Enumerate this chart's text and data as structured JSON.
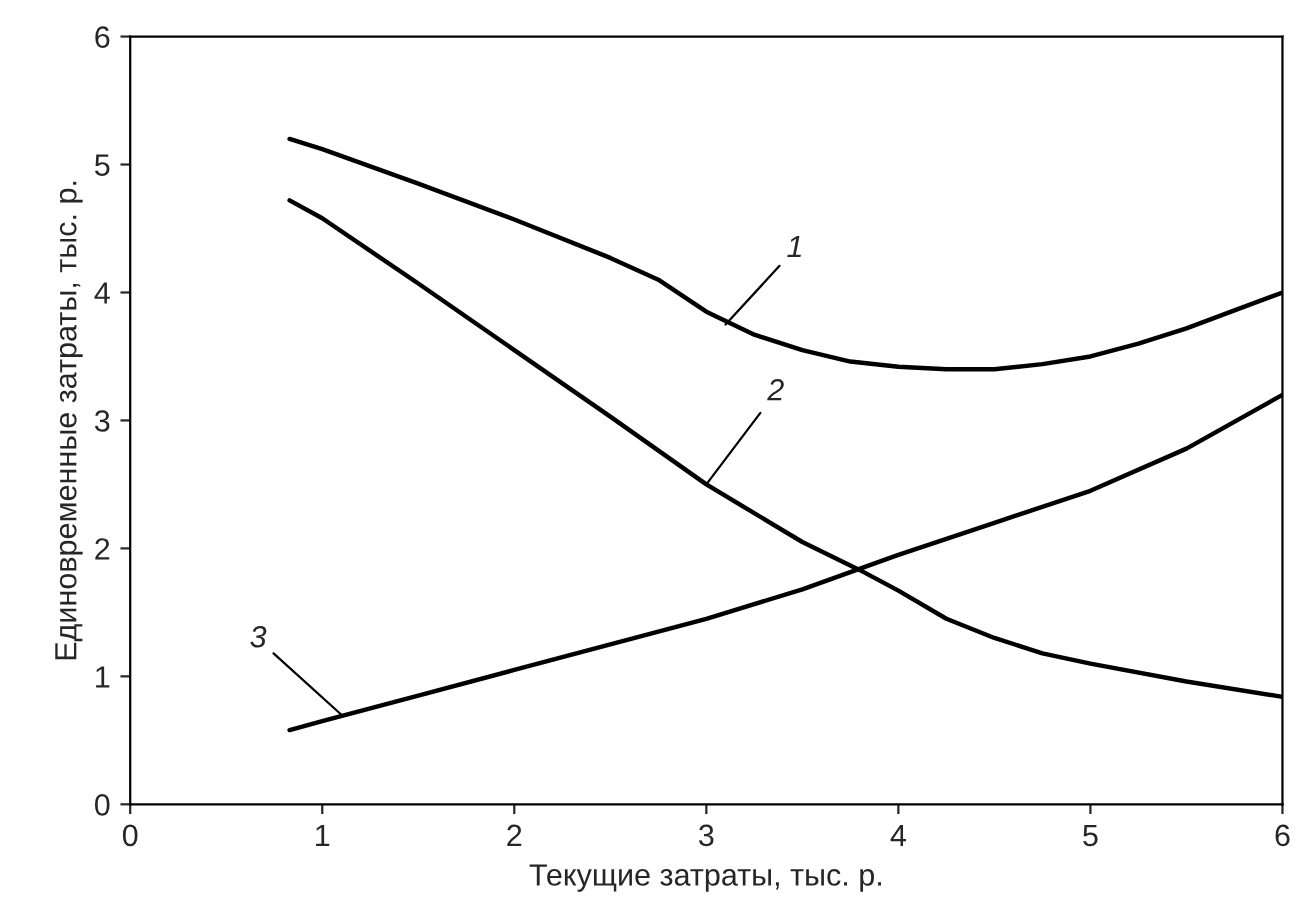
{
  "chart_data": {
    "type": "line",
    "xlabel": "Текущие затраты, тыс. р.",
    "ylabel": "Единовременные затраты, тыс. р.",
    "xlim": [
      0,
      6
    ],
    "ylim": [
      0,
      6
    ],
    "xticks": [
      0,
      1,
      2,
      3,
      4,
      5,
      6
    ],
    "yticks": [
      0,
      1,
      2,
      3,
      4,
      5,
      6
    ],
    "grid": false,
    "marker": "none",
    "line_style": "solid",
    "series": [
      {
        "color": "#000000",
        "x": [
          0.83,
          1.0,
          1.5,
          2.0,
          2.5,
          2.75,
          3.0,
          3.25,
          3.5,
          3.75,
          4.0,
          4.25,
          4.5,
          4.75,
          5.0,
          5.25,
          5.5,
          5.75,
          6.0
        ],
        "values": [
          5.2,
          5.12,
          4.85,
          4.57,
          4.27,
          4.1,
          3.85,
          3.67,
          3.55,
          3.46,
          3.42,
          3.4,
          3.4,
          3.44,
          3.5,
          3.6,
          3.72,
          3.86,
          4.0
        ]
      },
      {
        "color": "#000000",
        "x": [
          0.83,
          1.0,
          1.5,
          2.0,
          2.5,
          3.0,
          3.5,
          3.8,
          4.0,
          4.25,
          4.5,
          4.75,
          5.0,
          5.5,
          6.0
        ],
        "values": [
          4.72,
          4.58,
          4.07,
          3.55,
          3.03,
          2.5,
          2.05,
          1.83,
          1.67,
          1.45,
          1.3,
          1.18,
          1.1,
          0.96,
          0.84
        ]
      },
      {
        "color": "#000000",
        "x": [
          0.83,
          1.0,
          1.5,
          2.0,
          2.5,
          3.0,
          3.5,
          4.0,
          4.5,
          5.0,
          5.5,
          6.0
        ],
        "values": [
          0.58,
          0.65,
          0.85,
          1.05,
          1.25,
          1.45,
          1.68,
          1.95,
          2.2,
          2.45,
          2.78,
          3.2
        ]
      }
    ],
    "annotations": [
      {
        "text": "1",
        "x": 3.1,
        "y": 3.75
      },
      {
        "text": "2",
        "x": 3.0,
        "y": 2.5
      },
      {
        "text": "3",
        "x": 1.1,
        "y": 0.7
      }
    ]
  }
}
